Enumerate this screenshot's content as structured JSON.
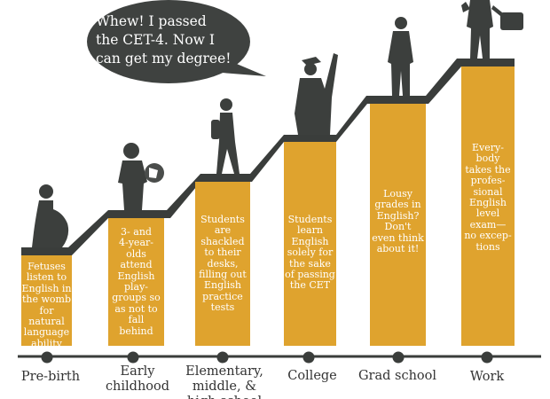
{
  "speech_bubble": {
    "text": "Whew! I passed\nthe CET-4. Now I\ncan get my degree!"
  },
  "colors": {
    "bar": "#DFA32E",
    "stair": "#3a3d3b",
    "silhouette": "#3c3f3d",
    "bubble": "#3f4240",
    "bar_text": "#ffffff",
    "label_text": "#333333"
  },
  "stages": [
    {
      "label": "Pre-birth",
      "description": "Fetuses\nlisten to\nEnglish in\nthe womb\nfor natural\nlanguage\nability",
      "figure": "pregnant-woman-silhouette"
    },
    {
      "label": "Early\nchildhood",
      "description": "3- and\n4-year-\nolds\nattend\nEnglish\nplay-\ngroups so\nas not to\nfall\nbehind",
      "figure": "child-with-ball-silhouette"
    },
    {
      "label": "Elementary,\nmiddle, &\nhigh school",
      "description": "Students\nare\nshackled\nto their\ndesks,\nfilling out\nEnglish\npractice\ntests",
      "figure": "student-with-backpack-silhouette"
    },
    {
      "label": "College",
      "description": "Students\nlearn\nEnglish\nsolely for\nthe sake\nof passing\nthe CET",
      "figure": "graduate-silhouette"
    },
    {
      "label": "Grad school",
      "description": "Lousy\ngrades in\nEnglish?\nDon't\neven think\nabout it!",
      "figure": "standing-man-silhouette"
    },
    {
      "label": "Work",
      "description": "Every-\nbody\ntakes the\nprofes-\nsional\nEnglish\nlevel\nexam—\nno excep-\ntions",
      "figure": "businessman-with-briefcase-silhouette"
    }
  ]
}
